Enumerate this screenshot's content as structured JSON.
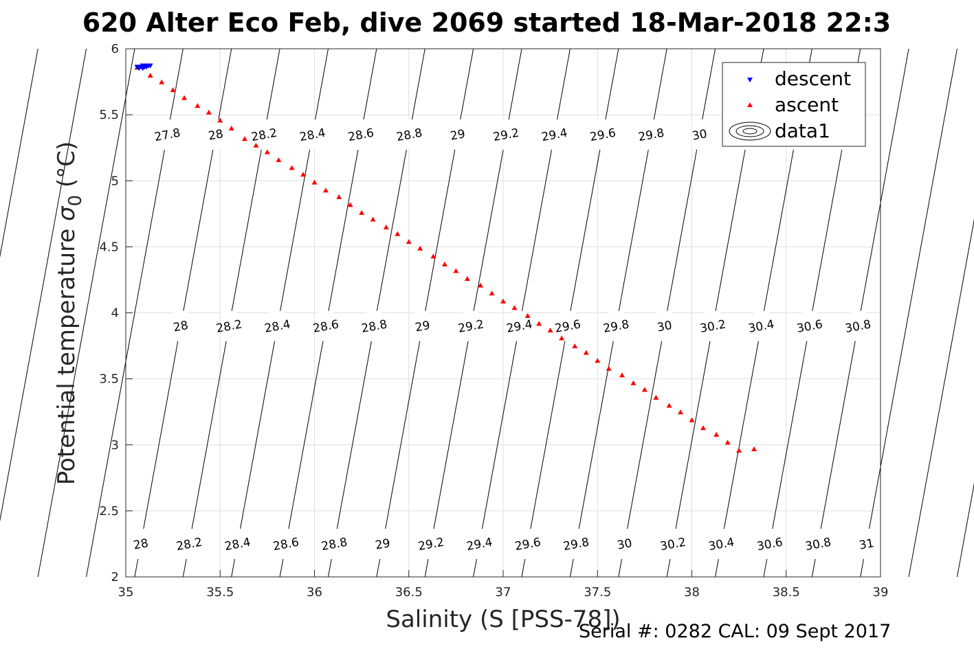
{
  "chart_data": {
    "type": "scatter",
    "title": "620 Alter Eco Feb, dive 2069 started 18-Mar-2018 22:3",
    "xlabel": "Salinity (S [PSS-78])",
    "ylabel_main": "Potential temperature ",
    "ylabel_sym": "σ",
    "ylabel_sub": "0",
    "ylabel_unit": " (°C)",
    "xlim": [
      35,
      39
    ],
    "ylim": [
      2,
      6
    ],
    "xticks": [
      "35",
      "35.5",
      "36",
      "36.5",
      "37",
      "37.5",
      "38",
      "38.5",
      "39"
    ],
    "yticks": [
      "2",
      "2.5",
      "3",
      "3.5",
      "4",
      "4.5",
      "5",
      "5.5",
      "6"
    ],
    "grid": true,
    "legend_position": "top-right",
    "footer": "Serial #: 0282  CAL: 09 Sept 2017",
    "series": [
      {
        "name": "descent",
        "marker": "triangle-down",
        "color": "#0000ff",
        "x": [
          35.06,
          35.07,
          35.08,
          35.09,
          35.1,
          35.1,
          35.11,
          35.12,
          35.12,
          35.13,
          35.07,
          35.09
        ],
        "y": [
          5.86,
          5.86,
          5.86,
          5.87,
          5.86,
          5.87,
          5.86,
          5.87,
          5.87,
          5.87,
          5.85,
          5.85
        ]
      },
      {
        "name": "ascent",
        "marker": "triangle-up",
        "color": "#ff0000",
        "x": [
          35.06,
          35.13,
          35.19,
          35.25,
          35.31,
          35.38,
          35.44,
          35.5,
          35.56,
          35.63,
          35.69,
          35.75,
          35.81,
          35.88,
          35.94,
          36.0,
          36.06,
          36.13,
          36.19,
          36.25,
          36.31,
          36.38,
          36.44,
          36.5,
          36.56,
          36.63,
          36.69,
          36.75,
          36.81,
          36.88,
          36.94,
          37.0,
          37.06,
          37.13,
          37.19,
          37.25,
          37.31,
          37.38,
          37.44,
          37.5,
          37.56,
          37.63,
          37.69,
          37.75,
          37.81,
          37.88,
          37.94,
          38.0,
          38.06,
          38.13,
          38.19,
          38.25,
          38.33
        ],
        "y": [
          5.86,
          5.8,
          5.75,
          5.69,
          5.63,
          5.57,
          5.52,
          5.46,
          5.4,
          5.32,
          5.27,
          5.22,
          5.16,
          5.1,
          5.05,
          4.99,
          4.93,
          4.88,
          4.82,
          4.76,
          4.71,
          4.65,
          4.6,
          4.54,
          4.49,
          4.43,
          4.37,
          4.32,
          4.26,
          4.21,
          4.15,
          4.09,
          4.04,
          3.98,
          3.92,
          3.87,
          3.81,
          3.75,
          3.7,
          3.64,
          3.58,
          3.53,
          3.47,
          3.42,
          3.36,
          3.3,
          3.25,
          3.19,
          3.13,
          3.08,
          3.02,
          2.96,
          2.97
        ]
      },
      {
        "name": "data1",
        "marker": "contour",
        "color": "#000000",
        "contour_levels": [
          "27.8",
          "28",
          "28.2",
          "28.4",
          "28.6",
          "28.8",
          "29",
          "29.2",
          "29.4",
          "29.6",
          "29.8",
          "30",
          "30.2",
          "30.4",
          "30.6",
          "30.8",
          "31"
        ]
      }
    ]
  }
}
